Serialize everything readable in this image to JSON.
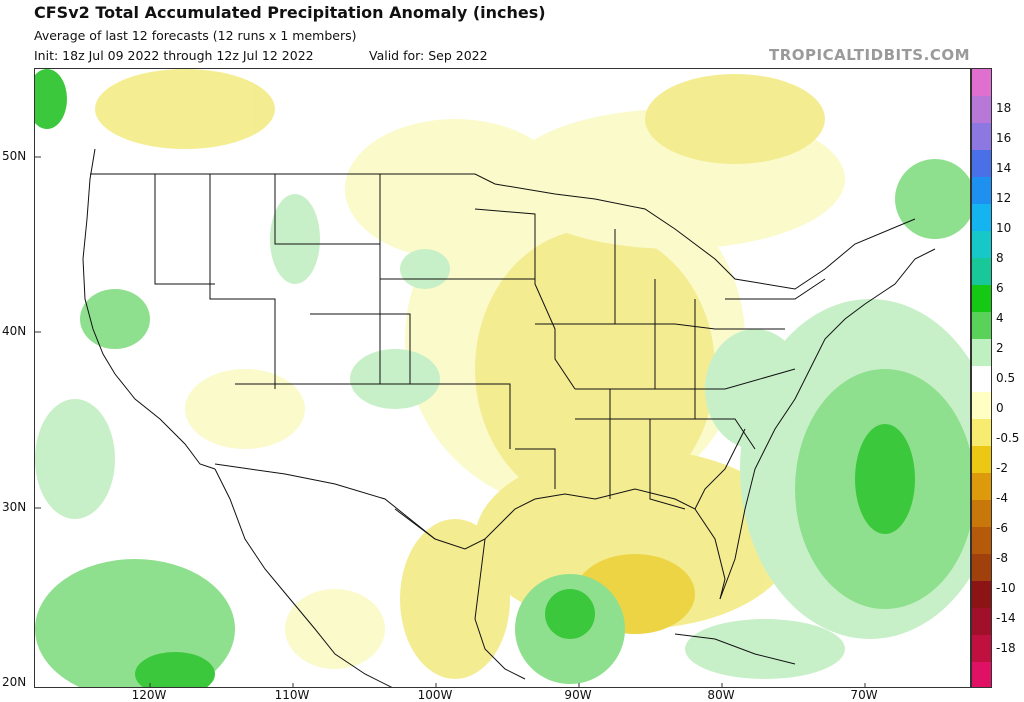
{
  "header": {
    "title": "CFSv2 Total Accumulated Precipitation Anomaly (inches)",
    "subtitle": "Average of last 12 forecasts (12 runs x 1 members)",
    "init": "Init: 18z Jul 09 2022 through 12z Jul 12 2022",
    "valid": "Valid for: Sep 2022",
    "brand": "TROPICALTIDBITS.COM"
  },
  "map": {
    "lat_labels": [
      "50N",
      "40N",
      "30N",
      "20N"
    ],
    "lon_labels": [
      "120W",
      "110W",
      "100W",
      "90W",
      "80W",
      "70W"
    ],
    "colors": {
      "land_border": "#111111",
      "state_border": "#111111",
      "wet_light": "#c8f0c8",
      "wet_mid": "#8ee08e",
      "wet_strong": "#3cc83c",
      "dry_light": "#fafac8",
      "dry_mid": "#f4ec8c",
      "dry_strong": "#ecd23c"
    }
  },
  "colorbar": {
    "labels": [
      "18",
      "16",
      "14",
      "12",
      "10",
      "8",
      "6",
      "4",
      "2",
      "0.5",
      "0",
      "-0.5",
      "-2",
      "-4",
      "-6",
      "-8",
      "-10",
      "-14",
      "-18"
    ],
    "colors": [
      "#e070d0",
      "#b878d8",
      "#8c78e0",
      "#4a70e8",
      "#1e90f0",
      "#14b4f0",
      "#16c8c8",
      "#18c898",
      "#14c814",
      "#5ad25a",
      "#bff0bf",
      "#ffffff",
      "#ffffc4",
      "#f8ec70",
      "#ecc814",
      "#dc9a0c",
      "#c8780a",
      "#b45a0a",
      "#a0400c",
      "#8c1414",
      "#a0102a",
      "#c01040",
      "#e01064"
    ]
  }
}
